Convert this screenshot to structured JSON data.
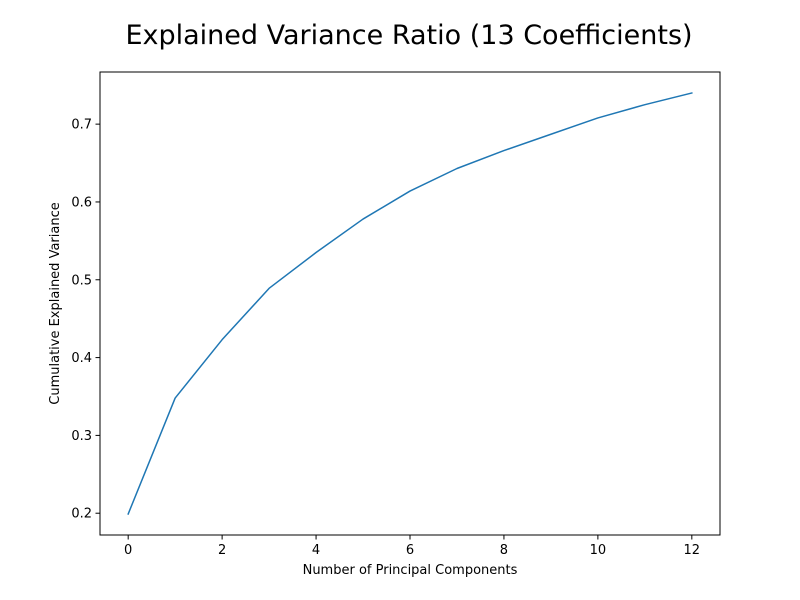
{
  "chart_data": {
    "type": "line",
    "title": "Explained Variance Ratio (13 Coefficients)",
    "xlabel": "Number of Principal Components",
    "ylabel": "Cumulative Explained Variance",
    "x": [
      0,
      1,
      2,
      3,
      4,
      5,
      6,
      7,
      8,
      9,
      10,
      11,
      12
    ],
    "series": [
      {
        "values": [
          0.199,
          0.348,
          0.423,
          0.489,
          0.535,
          0.578,
          0.614,
          0.643,
          0.666,
          0.687,
          0.708,
          0.725,
          0.74
        ],
        "color": "#1f77b4"
      }
    ],
    "xticks": [
      "0",
      "2",
      "4",
      "6",
      "8",
      "10",
      "12"
    ],
    "yticks": [
      "0.2",
      "0.3",
      "0.4",
      "0.5",
      "0.6",
      "0.7"
    ],
    "xlim": [
      -0.6,
      12.6
    ],
    "ylim": [
      0.172,
      0.767
    ],
    "grid": false,
    "legend": "none"
  }
}
